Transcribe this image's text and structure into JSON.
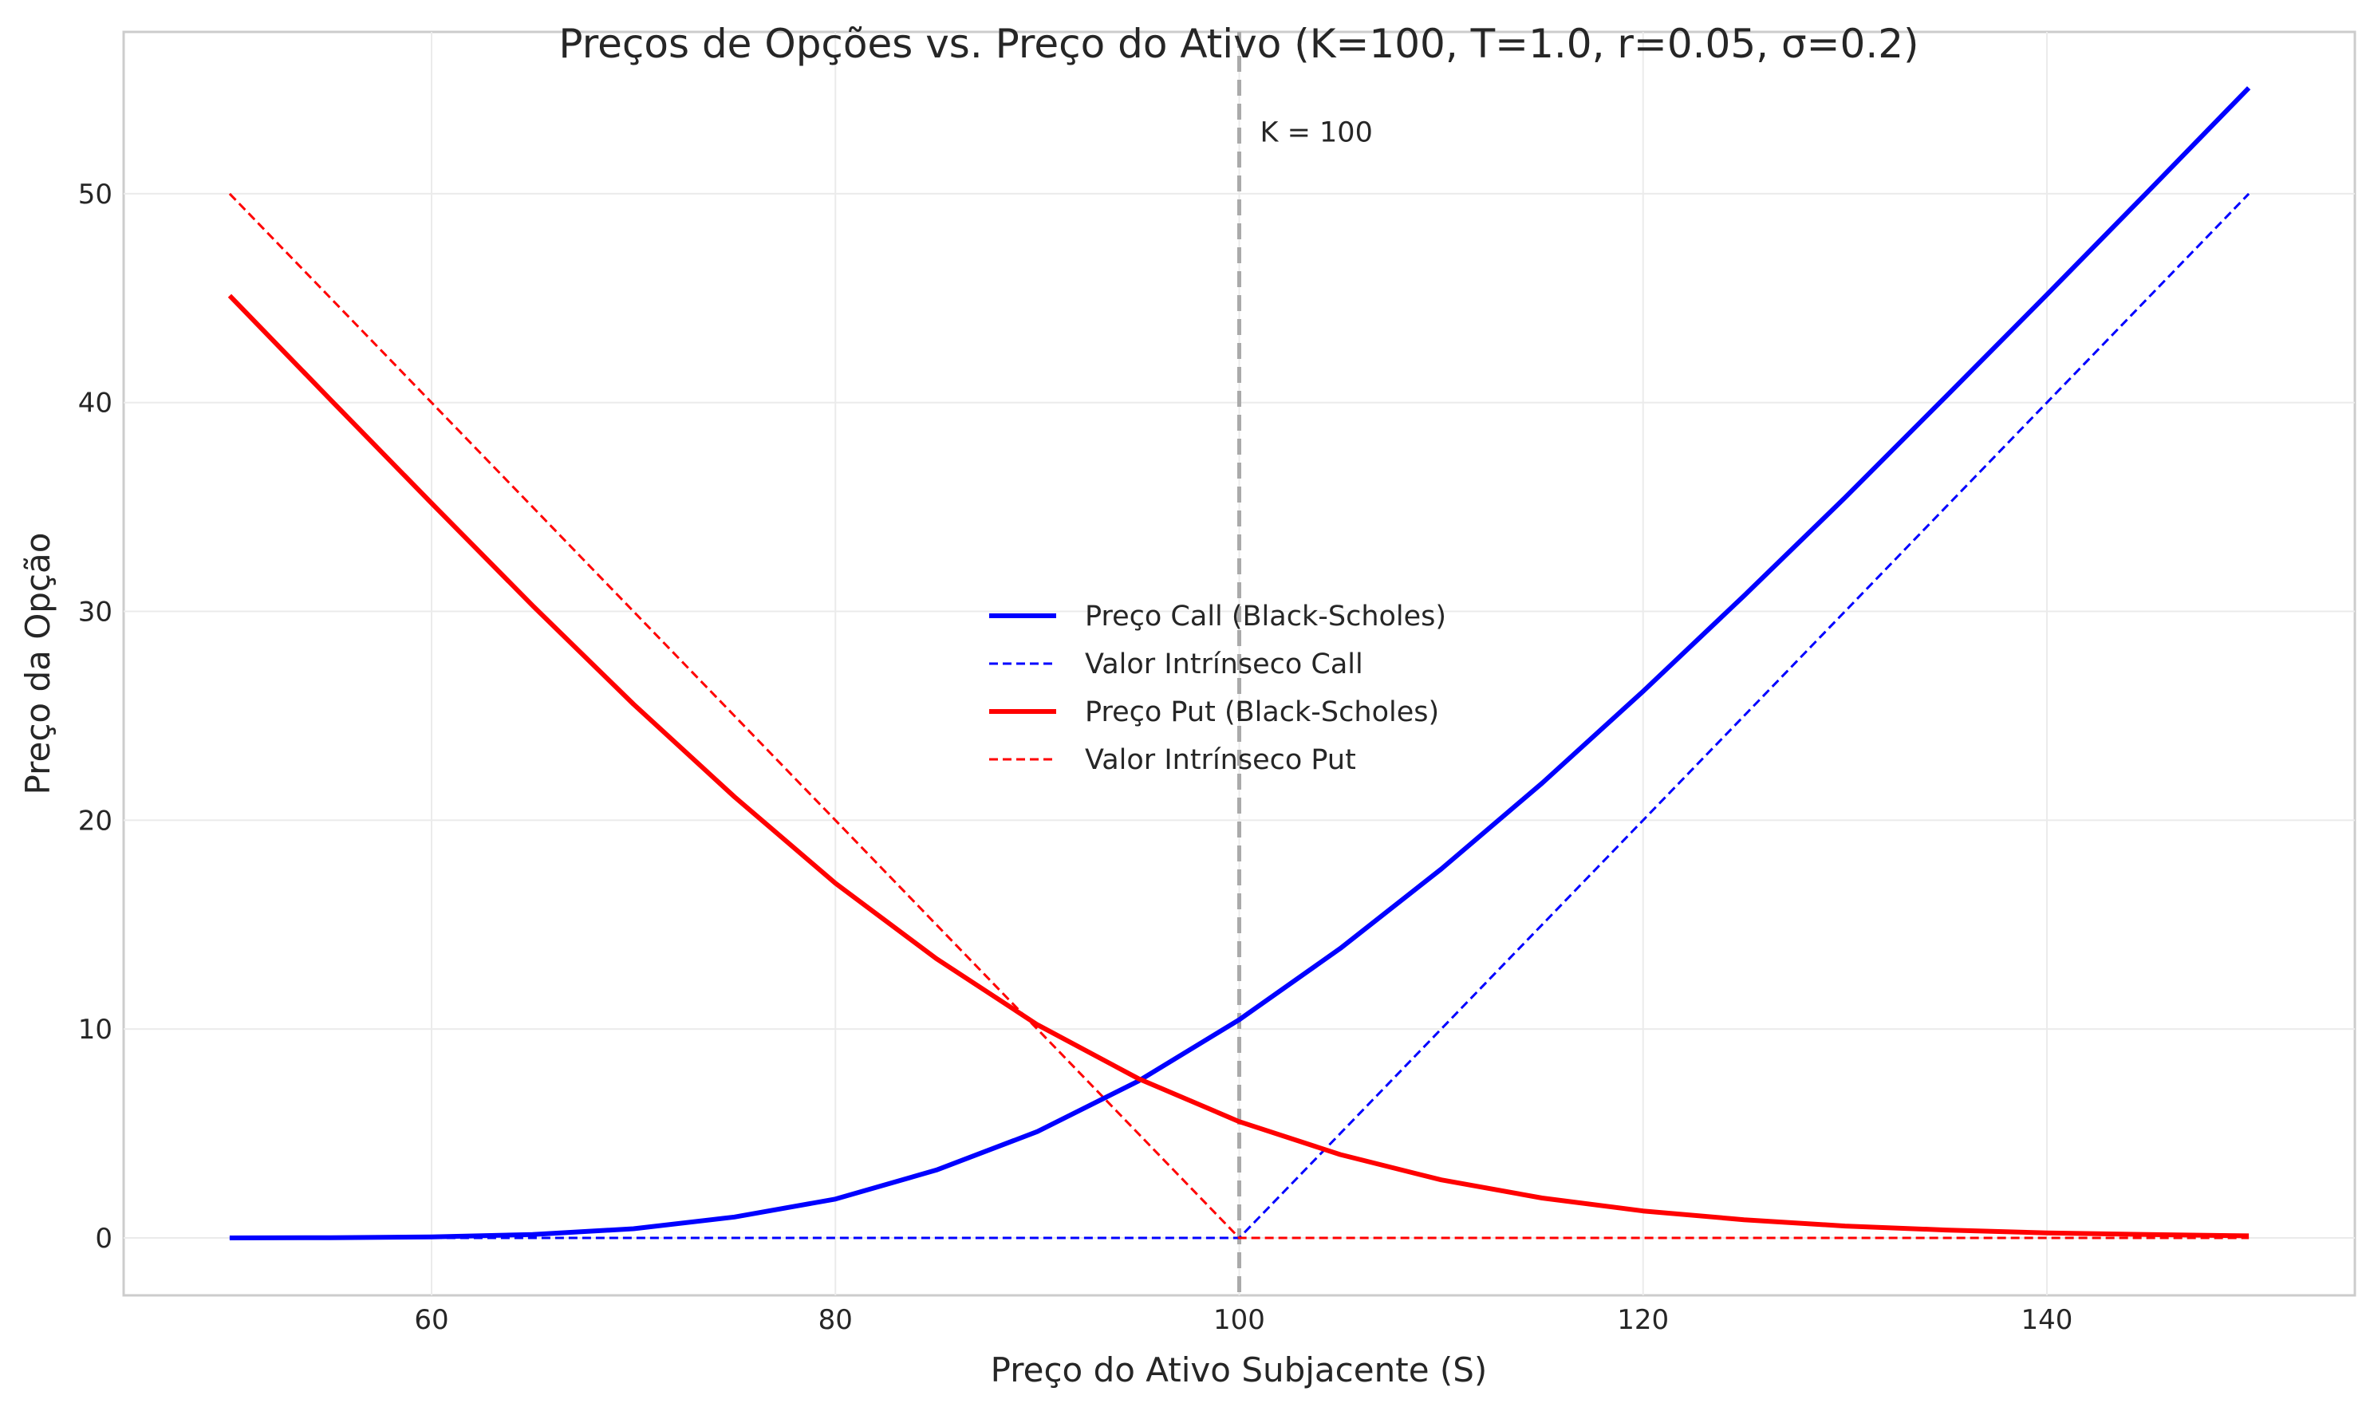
{
  "chart_data": {
    "type": "line",
    "title": "Preços de Opções vs. Preço do Ativo (K=100, T=1.0, r=0.05, σ=0.2)",
    "xlabel": "Preço do Ativo Subjacente (S)",
    "ylabel": "Preço da Opção",
    "xlim": [
      44.75,
      155.25
    ],
    "ylim": [
      -2.75,
      57.75
    ],
    "xticks": [
      60,
      80,
      100,
      120,
      140
    ],
    "yticks": [
      0,
      10,
      20,
      30,
      40,
      50
    ],
    "grid": true,
    "legend_position": "center",
    "x": [
      50,
      55,
      60,
      65,
      70,
      75,
      80,
      85,
      90,
      95,
      100,
      105,
      110,
      115,
      120,
      125,
      130,
      135,
      140,
      145,
      150
    ],
    "series": [
      {
        "name": "Preço Call (Black-Scholes)",
        "color": "#0000ff",
        "style": "solid",
        "values": [
          0.0,
          0.01,
          0.05,
          0.16,
          0.44,
          1.0,
          1.86,
          3.25,
          5.09,
          7.51,
          10.45,
          13.86,
          17.66,
          21.78,
          26.17,
          30.75,
          35.45,
          40.29,
          45.17,
          50.1,
          55.07
        ]
      },
      {
        "name": "Valor Intrínseco Call",
        "color": "#0000ff",
        "style": "dashed",
        "values": [
          0,
          0,
          0,
          0,
          0,
          0,
          0,
          0,
          0,
          0,
          0,
          5,
          10,
          15,
          20,
          25,
          30,
          35,
          40,
          45,
          50
        ]
      },
      {
        "name": "Preço Put (Black-Scholes)",
        "color": "#ff0000",
        "style": "solid",
        "values": [
          45.12,
          40.13,
          35.18,
          30.28,
          25.56,
          21.12,
          16.98,
          13.37,
          10.21,
          7.63,
          5.57,
          3.99,
          2.78,
          1.91,
          1.29,
          0.87,
          0.57,
          0.38,
          0.24,
          0.16,
          0.1
        ]
      },
      {
        "name": "Valor Intrínseco Put",
        "color": "#ff0000",
        "style": "dashed",
        "values": [
          50,
          45,
          40,
          35,
          30,
          25,
          20,
          15,
          10,
          5,
          0,
          0,
          0,
          0,
          0,
          0,
          0,
          0,
          0,
          0,
          0
        ]
      }
    ],
    "annotations": [
      {
        "text": "K = 100",
        "x": 100,
        "type": "vertical-line",
        "color": "#aaaaaa",
        "style": "dashed"
      }
    ]
  }
}
